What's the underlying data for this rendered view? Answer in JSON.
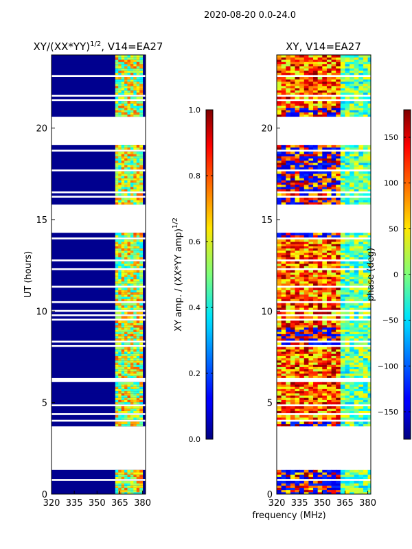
{
  "chart_data": [
    {
      "type": "heatmap",
      "name": "normalized-amplitude",
      "title_main": "XY/(XX*YY)",
      "title_sup": "1/2",
      "title_rest": ", V14=EA27",
      "x": {
        "range": [
          320,
          382
        ],
        "ticks": [
          320,
          335,
          350,
          365,
          380
        ],
        "label": ""
      },
      "y": {
        "range": [
          0,
          24
        ],
        "ticks": [
          0,
          5,
          10,
          15,
          20
        ],
        "label": "UT (hours)"
      },
      "colorbar": {
        "range": [
          0.0,
          1.0
        ],
        "ticks": [
          "0.0",
          "0.2",
          "0.4",
          "0.6",
          "0.8",
          "1.0"
        ],
        "label_main": "XY amp. / (XX*YY amp)",
        "label_sup": "1/2"
      },
      "data_gaps_hours": [
        [
          1.3,
          3.7
        ],
        [
          14.2,
          15.8
        ],
        [
          19.0,
          20.6
        ]
      ],
      "bright_band_mhz": [
        362,
        380
      ]
    },
    {
      "type": "heatmap",
      "name": "phase",
      "title": "XY, V14=EA27",
      "x": {
        "range": [
          320,
          382
        ],
        "ticks": [
          320,
          335,
          350,
          365,
          380
        ],
        "label": "frequency (MHz)"
      },
      "y": {
        "range": [
          0,
          24
        ],
        "ticks": [
          0,
          5,
          10,
          15,
          20
        ],
        "label": ""
      },
      "colorbar": {
        "range": [
          -180,
          180
        ],
        "ticks": [
          "−150",
          "−100",
          "−50",
          "0",
          "50",
          "100",
          "150"
        ],
        "label": "phase (deg)"
      },
      "data_gaps_hours": [
        [
          1.3,
          3.7
        ],
        [
          14.2,
          15.8
        ],
        [
          19.0,
          20.6
        ]
      ]
    }
  ],
  "header": {
    "date_range": "2020-08-20 0.0-24.0"
  }
}
